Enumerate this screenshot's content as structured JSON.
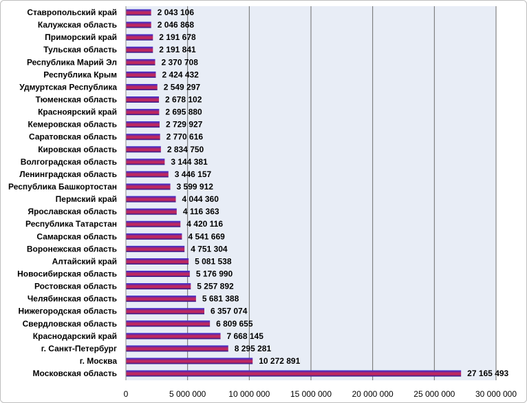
{
  "chart_data": {
    "type": "bar",
    "orientation": "horizontal",
    "categories": [
      "Ставропольский край",
      "Калужская область",
      "Приморский край",
      "Тульская область",
      "Республика Марий Эл",
      "Республика Крым",
      "Удмуртская Республика",
      "Тюменская область",
      "Красноярский край",
      "Кемеровская область",
      "Саратовская область",
      "Кировская область",
      "Волгоградская область",
      "Ленинградская область",
      "Республика Башкортостан",
      "Пермский край",
      "Ярославская область",
      "Республика Татарстан",
      "Самарская область",
      "Воронежская область",
      "Алтайский край",
      "Новосибирская область",
      "Ростовская область",
      "Челябинская область",
      "Нижегородская область",
      "Свердловская область",
      "Краснодарский край",
      "г. Санкт-Петербург",
      "г. Москва",
      "Московская область"
    ],
    "values": [
      2043106,
      2046868,
      2191678,
      2191841,
      2370708,
      2424432,
      2549297,
      2678102,
      2695880,
      2729927,
      2770616,
      2834750,
      3144381,
      3446157,
      3599912,
      4044360,
      4116363,
      4420116,
      4541669,
      4751304,
      5081538,
      5176990,
      5257892,
      5681388,
      6357074,
      6809655,
      7668145,
      8295281,
      10272891,
      27165493
    ],
    "value_labels": [
      "2 043 106",
      "2 046 868",
      "2 191 678",
      "2 191 841",
      "2 370 708",
      "2 424 432",
      "2 549 297",
      "2 678 102",
      "2 695 880",
      "2 729 927",
      "2 770 616",
      "2 834 750",
      "3 144 381",
      "3 446 157",
      "3 599 912",
      "4 044 360",
      "4 116 363",
      "4 420 116",
      "4 541 669",
      "4 751 304",
      "5 081 538",
      "5 176 990",
      "5 257 892",
      "5 681 388",
      "6 357 074",
      "6 809 655",
      "7 668 145",
      "8 295 281",
      "10 272 891",
      "27 165 493"
    ],
    "x_ticks": [
      0,
      5000000,
      10000000,
      15000000,
      20000000,
      25000000,
      30000000
    ],
    "x_tick_labels": [
      "0",
      "5 000 000",
      "10 000 000",
      "15 000 000",
      "20 000 000",
      "25 000 000",
      "30 000 000"
    ],
    "xlim": [
      0,
      30000000
    ],
    "grid": true,
    "title": "",
    "xlabel": "",
    "ylabel": "",
    "colors": {
      "plot_background": "#e8edf6",
      "grid": "#6b6b6b",
      "bar_stripe_top": "#2b2bd8",
      "bar_stripe_mid": "#c0285e",
      "bar_stripe_bottom": "#1a1a9a"
    }
  }
}
